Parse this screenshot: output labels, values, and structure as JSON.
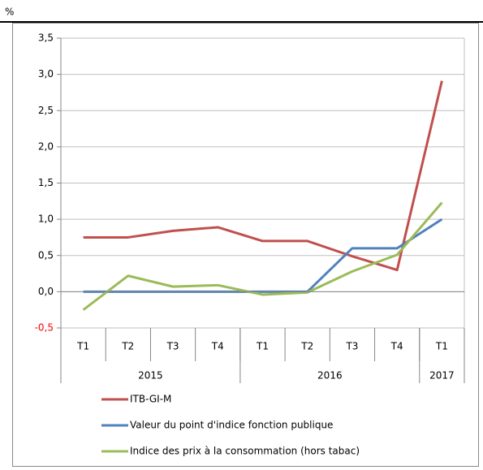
{
  "chart_data": {
    "type": "line",
    "unit_label": "%",
    "categories": [
      "T1",
      "T2",
      "T3",
      "T4",
      "T1",
      "T2",
      "T3",
      "T4",
      "T1"
    ],
    "groups": [
      {
        "label": "2015",
        "span": 4
      },
      {
        "label": "2016",
        "span": 4
      },
      {
        "label": "2017",
        "span": 1
      }
    ],
    "series": [
      {
        "name": "ITB-GI-M",
        "color": "#c0504d",
        "values": [
          0.75,
          0.75,
          0.84,
          0.89,
          0.7,
          0.7,
          0.49,
          0.3,
          2.91
        ]
      },
      {
        "name": "Valeur du point d'indice fonction publique",
        "color": "#4f81bd",
        "values": [
          0,
          0,
          0,
          0,
          0,
          0,
          0.6,
          0.6,
          1.0
        ]
      },
      {
        "name": "Indice des prix à la consommation (hors tabac)",
        "color": "#9bbb59",
        "values": [
          -0.25,
          0.22,
          0.07,
          0.09,
          -0.04,
          -0.01,
          0.28,
          0.51,
          1.23
        ]
      }
    ],
    "ylim": [
      -0.5,
      3.5
    ],
    "yticks": [
      {
        "value": -0.5,
        "label": "-0,5"
      },
      {
        "value": 0,
        "label": "0,0"
      },
      {
        "value": 0.5,
        "label": "0,5"
      },
      {
        "value": 1,
        "label": "1,0"
      },
      {
        "value": 1.5,
        "label": "1,5"
      },
      {
        "value": 2,
        "label": "2,0"
      },
      {
        "value": 2.5,
        "label": "2,5"
      },
      {
        "value": 3,
        "label": "3,0"
      },
      {
        "value": 3.5,
        "label": "3,5"
      }
    ],
    "negative_tick_color": "#ff0000",
    "grid": true
  }
}
